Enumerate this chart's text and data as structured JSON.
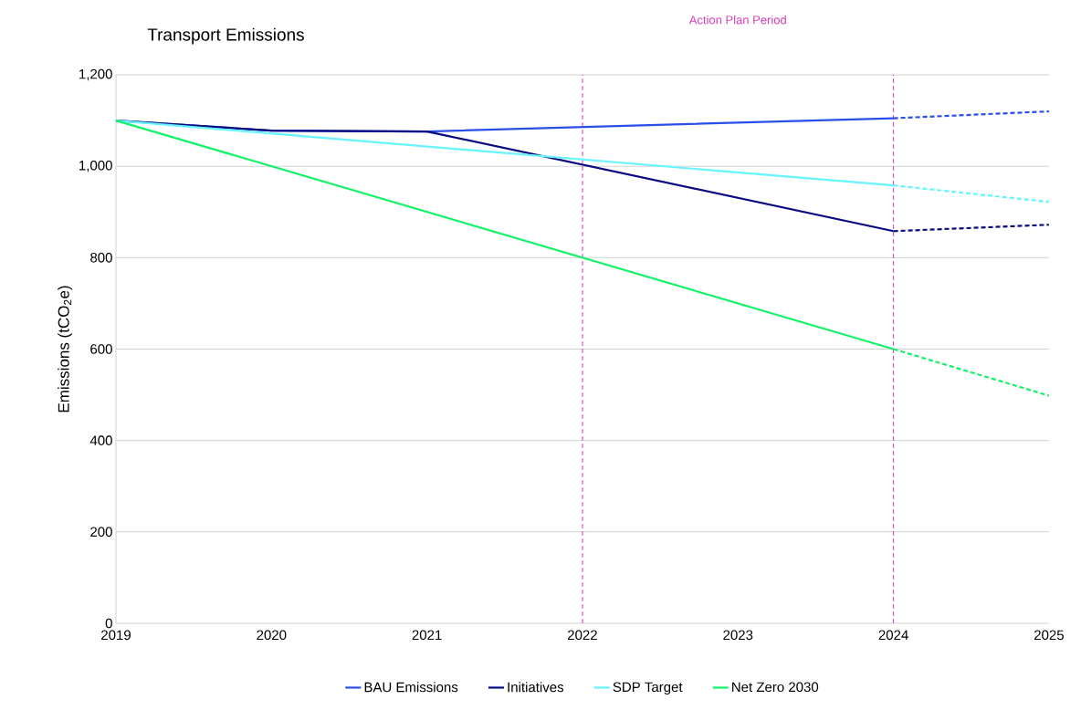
{
  "chart_data": {
    "type": "line",
    "title": "Transport Emissions",
    "ylabel": "Emissions (tCO$_{2}$e)",
    "xlim": [
      2019,
      2025
    ],
    "xticks": [
      2019,
      2020,
      2021,
      2022,
      2023,
      2024,
      2025
    ],
    "ylim": [
      0,
      1200
    ],
    "yticks": [
      0,
      200,
      400,
      600,
      800,
      {
        "value": 1000,
        "label": "1,000"
      },
      {
        "value": 1200,
        "label": "1,200"
      }
    ],
    "grid": "y",
    "legend": "bottom",
    "marker": "none",
    "series": [
      {
        "name": "BAU Emissions",
        "color": "#2a4ee8",
        "x": [
          2019,
          2020,
          2021,
          2024
        ],
        "values": [
          1100,
          1078,
          1076,
          1105
        ],
        "line_style": "solid"
      },
      {
        "name": "Initiatives",
        "color": "#0a0a80",
        "x": [
          2019,
          2020,
          2021,
          2024
        ],
        "values": [
          1100,
          1078,
          1076,
          858
        ],
        "line_style": "solid"
      },
      {
        "name": "SDP Target",
        "color": "#66f4ff",
        "x": [
          2019,
          2024
        ],
        "values": [
          1100,
          958
        ],
        "line_style": "solid"
      },
      {
        "name": "Net Zero 2030",
        "color": "#14f26a",
        "x": [
          2019,
          2024
        ],
        "values": [
          1100,
          600
        ],
        "line_style": "solid"
      },
      {
        "color": "#2a4ee8",
        "x": [
          2024,
          2025
        ],
        "values": [
          1105,
          1120
        ],
        "line_style": "dashed"
      },
      {
        "color": "#0a0a80",
        "x": [
          2024,
          2025
        ],
        "values": [
          858,
          872
        ],
        "line_style": "dashed"
      },
      {
        "color": "#66f4ff",
        "x": [
          2024,
          2025
        ],
        "values": [
          958,
          922
        ],
        "line_style": "dashed"
      },
      {
        "color": "#14f26a",
        "x": [
          2024,
          2025
        ],
        "values": [
          600,
          498
        ],
        "line_style": "dashed"
      }
    ],
    "ref_lines": [
      {
        "axis": "x",
        "value": 2022,
        "color": "#d63ab8",
        "line_style": "dashed"
      },
      {
        "axis": "x",
        "value": 2024,
        "color": "#d63ab8",
        "line_style": "dashed"
      }
    ],
    "annotations": [
      "Action Plan Period"
    ]
  }
}
